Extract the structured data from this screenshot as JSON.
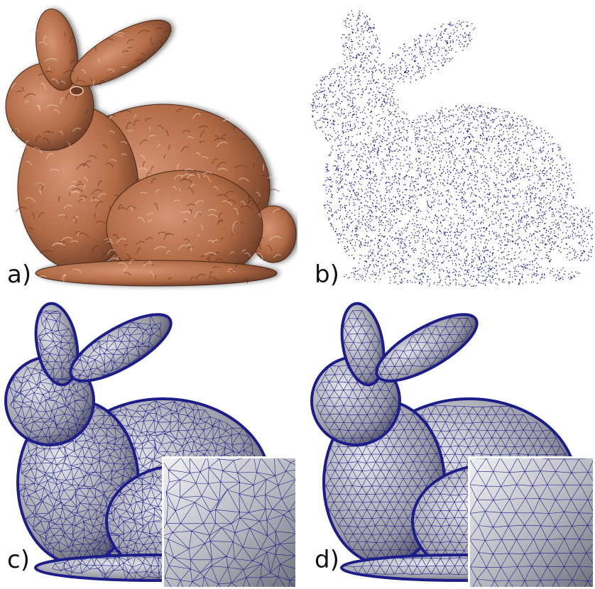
{
  "panels": [
    {
      "id": "a",
      "label": "a)",
      "rendering": "photograph",
      "color": "#b06a45"
    },
    {
      "id": "b",
      "label": "b)",
      "rendering": "point-cloud",
      "color": "#1a1a8c"
    },
    {
      "id": "c",
      "label": "c)",
      "rendering": "irregular-triangle-mesh",
      "color": "#1d1d8a",
      "has_inset": true
    },
    {
      "id": "d",
      "label": "d)",
      "rendering": "regular-triangle-mesh",
      "color": "#1d1d8a",
      "has_inset": true
    }
  ]
}
